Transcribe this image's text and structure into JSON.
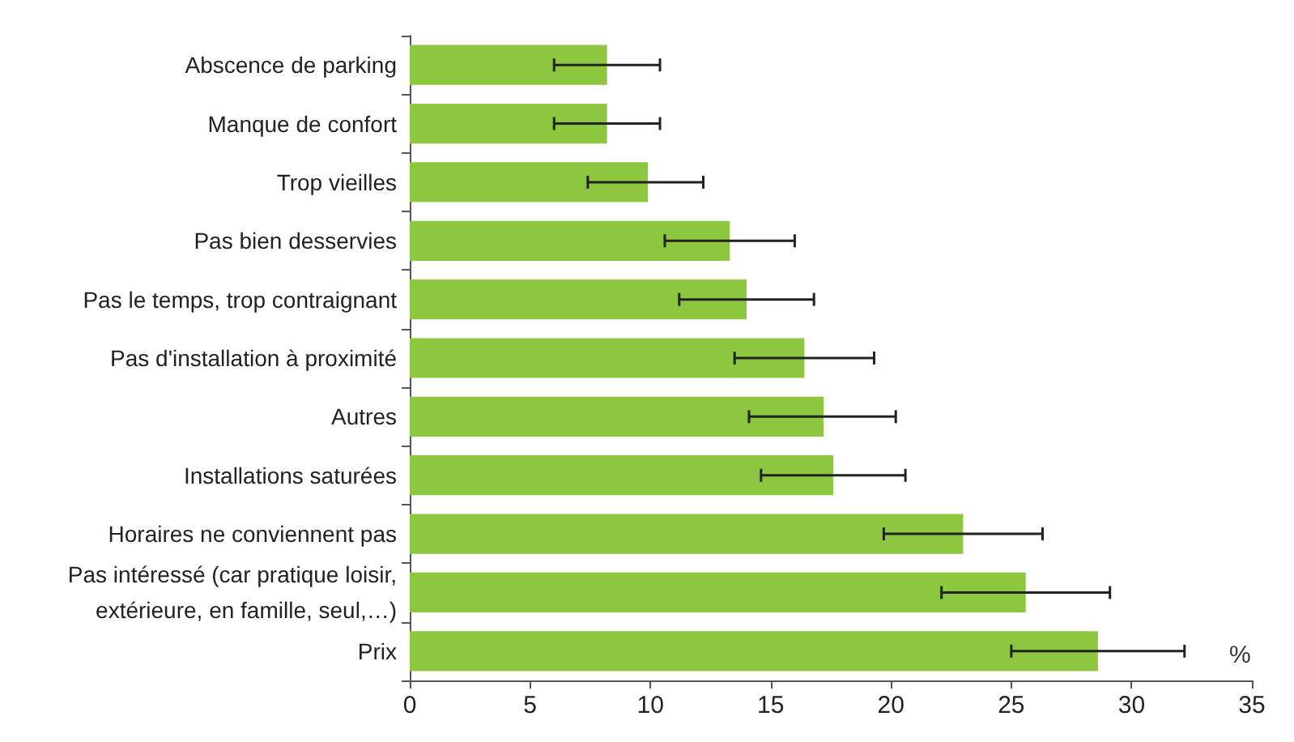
{
  "chart_data": {
    "type": "bar",
    "orientation": "horizontal",
    "xlabel": "%",
    "categories": [
      "Abscence de parking",
      "Manque de confort",
      "Trop vieilles",
      "Pas bien desservies",
      "Pas le temps, trop contraignant",
      "Pas d'installation à proximité",
      "Autres",
      "Installations saturées",
      "Horaires ne conviennent pas",
      "Pas intéressé (car pratique loisir,\nextérieure, en famille, seul,…)",
      "Prix"
    ],
    "values": [
      8.2,
      8.2,
      9.9,
      13.3,
      14.0,
      16.4,
      17.2,
      17.6,
      23.0,
      25.6,
      28.6
    ],
    "errors": [
      [
        6.0,
        10.4
      ],
      [
        6.0,
        10.4
      ],
      [
        7.4,
        12.2
      ],
      [
        10.6,
        16.0
      ],
      [
        11.2,
        16.8
      ],
      [
        13.5,
        19.3
      ],
      [
        14.1,
        20.2
      ],
      [
        14.6,
        20.6
      ],
      [
        19.7,
        26.3
      ],
      [
        22.1,
        29.1
      ],
      [
        25.0,
        32.2
      ]
    ],
    "color": "#8dc63f",
    "xlim": [
      0,
      35
    ],
    "xticks": [
      0,
      5,
      10,
      15,
      20,
      25,
      30,
      35
    ],
    "grid": false
  }
}
